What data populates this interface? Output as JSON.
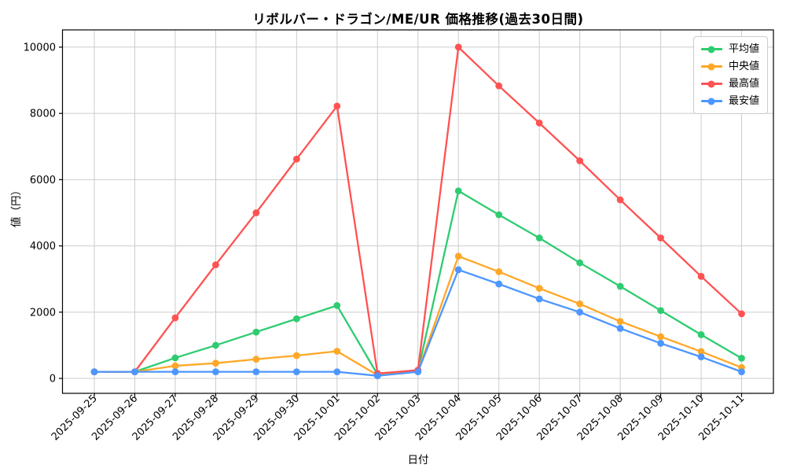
{
  "title": "リボルバー・ドラゴン/ME/UR 価格推移(過去30日間)",
  "axes": {
    "x_label": "日付",
    "y_label": "値（円）"
  },
  "style_colors": {
    "background": "#ffffff",
    "grid": "#cccccc",
    "spine": "#000000",
    "legend_border": "#cccccc"
  },
  "chart_data": {
    "type": "line",
    "title": "リボルバー・ドラゴン/ME/UR 価格推移(過去30日間)",
    "xlabel": "日付",
    "ylabel": "値（円）",
    "grid": true,
    "legend_position": "upper right",
    "ylim": [
      -450,
      10520
    ],
    "yticks": [
      0,
      2000,
      4000,
      6000,
      8000,
      10000
    ],
    "categories": [
      "2025-09-25",
      "2025-09-26",
      "2025-09-27",
      "2025-09-28",
      "2025-09-29",
      "2025-09-30",
      "2025-10-01",
      "2025-10-02",
      "2025-10-03",
      "2025-10-04",
      "2025-10-05",
      "2025-10-06",
      "2025-10-07",
      "2025-10-08",
      "2025-10-09",
      "2025-10-10",
      "2025-10-11"
    ],
    "series": [
      {
        "key": "avg",
        "name": "平均値",
        "color": "#2ecc71",
        "values": [
          200,
          200,
          620,
          1000,
          1400,
          1800,
          2200,
          120,
          220,
          5660,
          4940,
          4240,
          3490,
          2780,
          2050,
          1320,
          610
        ]
      },
      {
        "key": "median",
        "name": "中央値",
        "color": "#ffa726",
        "values": [
          200,
          200,
          380,
          460,
          580,
          690,
          820,
          100,
          210,
          3690,
          3220,
          2720,
          2250,
          1720,
          1260,
          810,
          330
        ]
      },
      {
        "key": "max",
        "name": "最高値",
        "color": "#ff5252",
        "values": [
          200,
          200,
          1830,
          3430,
          5000,
          6620,
          8220,
          150,
          250,
          10000,
          8830,
          7710,
          6570,
          5390,
          4240,
          3080,
          1950
        ]
      },
      {
        "key": "min",
        "name": "最安値",
        "color": "#4d96ff",
        "values": [
          200,
          200,
          200,
          200,
          200,
          200,
          200,
          80,
          200,
          3280,
          2850,
          2400,
          2000,
          1510,
          1060,
          650,
          200
        ]
      }
    ]
  }
}
